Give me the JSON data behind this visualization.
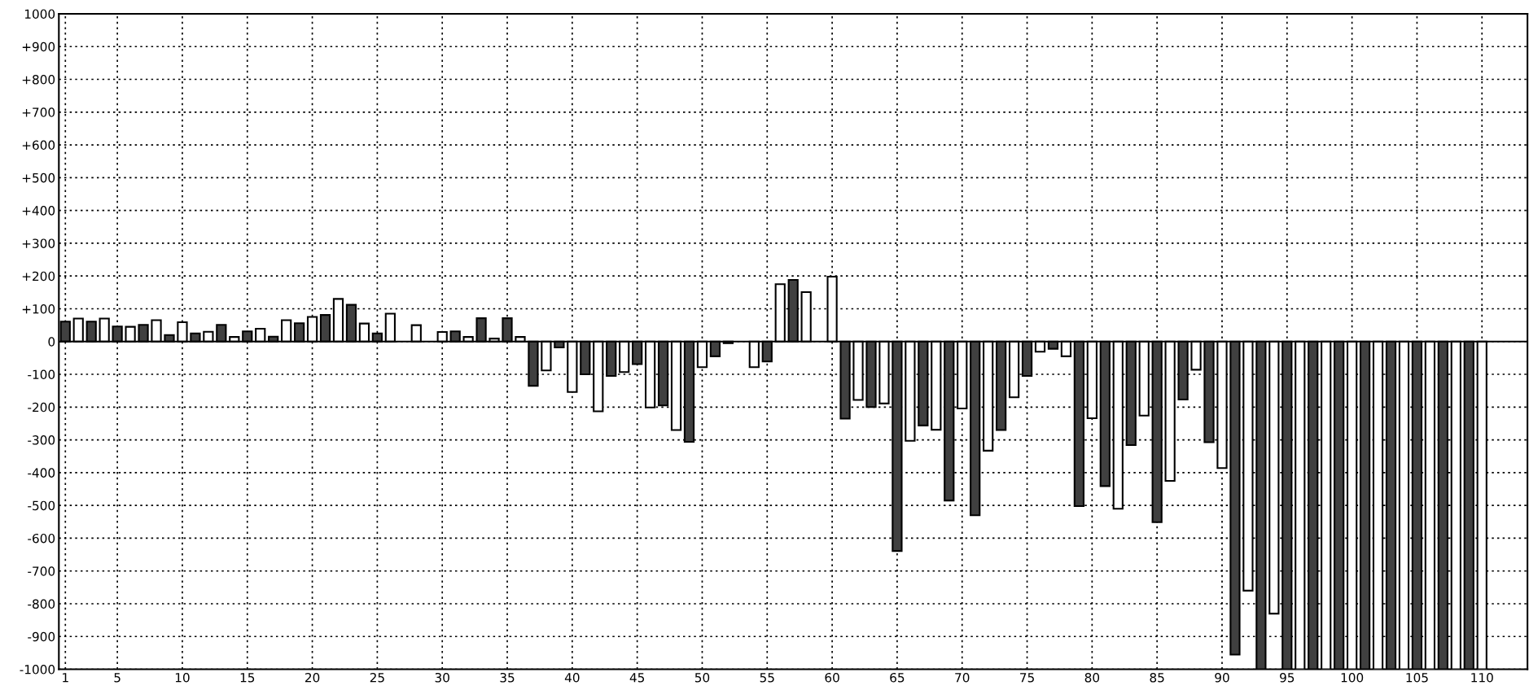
{
  "chart_data": {
    "type": "bar",
    "x": [
      1,
      2,
      3,
      4,
      5,
      6,
      7,
      8,
      9,
      10,
      11,
      12,
      13,
      14,
      15,
      16,
      17,
      18,
      19,
      20,
      21,
      22,
      23,
      24,
      25,
      26,
      27,
      28,
      29,
      30,
      31,
      32,
      33,
      34,
      35,
      36,
      37,
      38,
      39,
      40,
      41,
      42,
      43,
      44,
      45,
      46,
      47,
      48,
      49,
      50,
      51,
      52,
      53,
      54,
      55,
      56,
      57,
      58,
      59,
      60,
      61,
      62,
      63,
      64,
      65,
      66,
      67,
      68,
      69,
      70,
      71,
      72,
      73,
      74,
      75,
      76,
      77,
      78,
      79,
      80,
      81,
      82,
      83,
      84,
      85,
      86,
      87,
      88,
      89,
      90,
      91,
      92,
      93,
      94,
      95,
      96,
      97,
      98,
      99,
      100,
      101,
      102,
      103,
      104,
      105,
      106,
      107,
      108,
      109,
      110
    ],
    "values": [
      61,
      70,
      61,
      70,
      46,
      45,
      51,
      65,
      20,
      59,
      25,
      30,
      51,
      14,
      31,
      39,
      15,
      65,
      56,
      75,
      81,
      130,
      112,
      55,
      25,
      85,
      null,
      50,
      null,
      29,
      31,
      14,
      71,
      9,
      71,
      14,
      -135,
      -88,
      -18,
      -154,
      -100,
      -213,
      -105,
      -93,
      -69,
      -201,
      -195,
      -270,
      -306,
      -78,
      -45,
      -5,
      null,
      -78,
      -61,
      175,
      188,
      151,
      null,
      198,
      -235,
      -178,
      -200,
      -189,
      -639,
      -303,
      -256,
      -269,
      -485,
      -204,
      -530,
      -333,
      -270,
      -170,
      -105,
      -31,
      -22,
      -45,
      -502,
      -234,
      -441,
      -510,
      -316,
      -226,
      -551,
      -425,
      -177,
      -86,
      -307,
      -386,
      -955,
      -760,
      -1000,
      -830,
      -1000,
      -1000,
      -1000,
      -1000,
      -1000,
      -1000,
      -1000,
      -1000,
      -1000,
      -1000,
      -1000,
      -1000,
      -1000,
      -1000,
      -1000,
      -1000
    ],
    "colors": [
      "#404040",
      "#ffffff",
      "#404040",
      "#ffffff",
      "#404040",
      "#ffffff",
      "#404040",
      "#ffffff",
      "#404040",
      "#ffffff",
      "#404040",
      "#ffffff",
      "#404040",
      "#ffffff",
      "#404040",
      "#ffffff",
      "#404040",
      "#ffffff",
      "#404040",
      "#ffffff",
      "#404040",
      "#ffffff",
      "#404040",
      "#ffffff",
      "#404040",
      "#ffffff",
      "#404040",
      "#ffffff",
      "#404040",
      "#ffffff",
      "#404040",
      "#ffffff",
      "#404040",
      "#ffffff",
      "#404040",
      "#ffffff",
      "#404040",
      "#ffffff",
      "#404040",
      "#ffffff",
      "#404040",
      "#ffffff",
      "#404040",
      "#ffffff",
      "#404040",
      "#ffffff",
      "#404040",
      "#ffffff",
      "#404040",
      "#ffffff",
      "#404040",
      "#ffffff",
      "#404040",
      "#ffffff",
      "#404040",
      "#ffffff",
      "#404040",
      "#ffffff",
      "#404040",
      "#ffffff",
      "#404040",
      "#ffffff",
      "#404040",
      "#ffffff",
      "#404040",
      "#ffffff",
      "#404040",
      "#ffffff",
      "#404040",
      "#ffffff",
      "#404040",
      "#ffffff",
      "#404040",
      "#ffffff",
      "#404040",
      "#ffffff",
      "#404040",
      "#ffffff",
      "#404040",
      "#ffffff",
      "#404040",
      "#ffffff",
      "#404040",
      "#ffffff",
      "#404040",
      "#ffffff",
      "#404040",
      "#ffffff",
      "#404040",
      "#ffffff",
      "#404040",
      "#ffffff",
      "#404040",
      "#ffffff",
      "#404040",
      "#ffffff",
      "#404040",
      "#ffffff",
      "#404040",
      "#ffffff",
      "#404040",
      "#ffffff",
      "#404040",
      "#ffffff",
      "#404040",
      "#ffffff",
      "#404040",
      "#ffffff",
      "#404040",
      "#ffffff"
    ],
    "xlim": [
      0.5,
      113.5
    ],
    "xticks": [
      1,
      5,
      10,
      15,
      20,
      25,
      30,
      35,
      40,
      45,
      50,
      55,
      60,
      65,
      70,
      75,
      80,
      85,
      90,
      95,
      100,
      105,
      110
    ],
    "ylim": [
      -1000,
      1000
    ],
    "yticks": [
      {
        "value": -1000,
        "label": "-1000"
      },
      {
        "value": -900,
        "label": "-900"
      },
      {
        "value": -800,
        "label": "-800"
      },
      {
        "value": -700,
        "label": "-700"
      },
      {
        "value": -600,
        "label": "-600"
      },
      {
        "value": -500,
        "label": "-500"
      },
      {
        "value": -400,
        "label": "-400"
      },
      {
        "value": -300,
        "label": "-300"
      },
      {
        "value": -200,
        "label": "-200"
      },
      {
        "value": -100,
        "label": "-100"
      },
      0,
      {
        "value": 100,
        "label": "+100"
      },
      {
        "value": 200,
        "label": "+200"
      },
      {
        "value": 300,
        "label": "+300"
      },
      {
        "value": 400,
        "label": "+400"
      },
      {
        "value": 500,
        "label": "+500"
      },
      {
        "value": 600,
        "label": "+600"
      },
      {
        "value": 700,
        "label": "+700"
      },
      {
        "value": 800,
        "label": "+800"
      },
      {
        "value": 900,
        "label": "+900"
      },
      1000
    ],
    "grid": true
  }
}
